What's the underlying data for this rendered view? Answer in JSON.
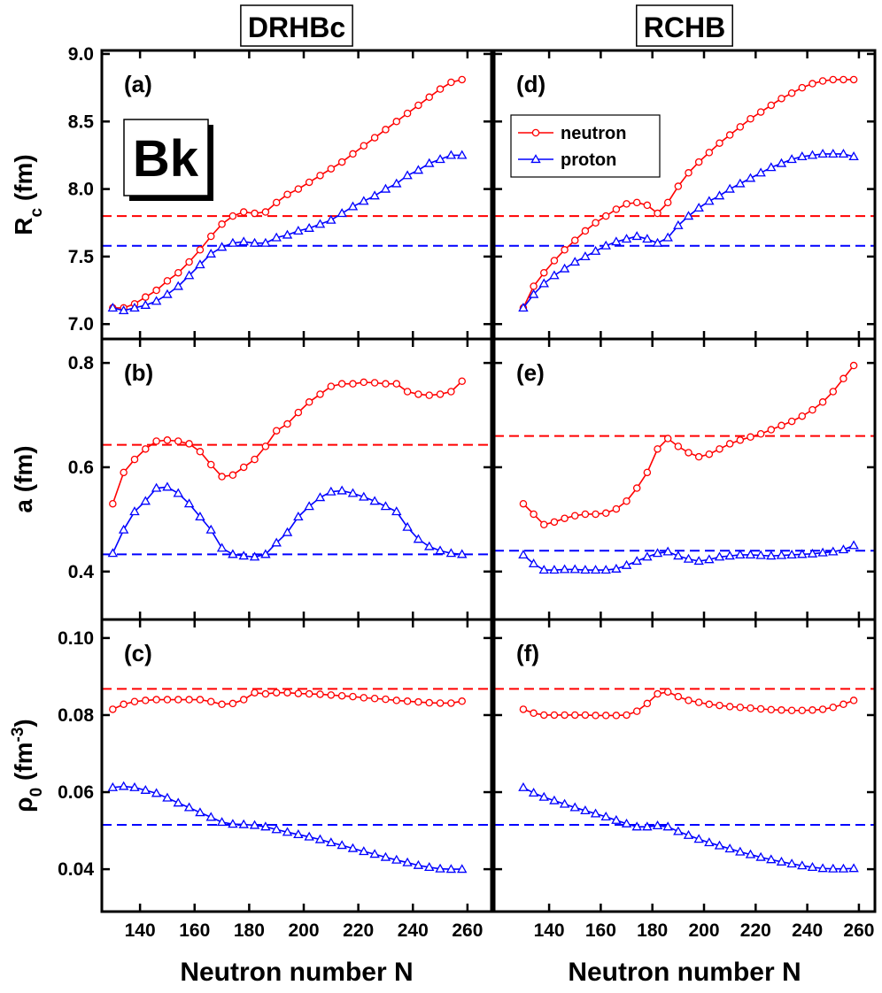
{
  "chart_data": [
    {
      "type": "line",
      "title": "DRHBc",
      "panel_label": "(a)",
      "element_label": "Bk",
      "ylabel": [
        {
          "text": "R"
        },
        {
          "text": "c",
          "shift": "sub"
        },
        {
          "text": " (fm)"
        }
      ],
      "x": [
        130,
        134,
        138,
        142,
        146,
        150,
        154,
        158,
        162,
        166,
        170,
        174,
        178,
        182,
        186,
        190,
        194,
        198,
        202,
        206,
        210,
        214,
        218,
        222,
        226,
        230,
        234,
        238,
        242,
        246,
        250,
        254,
        258
      ],
      "xlim": [
        126,
        268.8
      ],
      "xticks": [
        140,
        160,
        180,
        200,
        220,
        240,
        260
      ],
      "show_xtick_labels": false,
      "ylim": [
        6.89,
        9.026
      ],
      "yticks": [
        {
          "value": 7,
          "label": "7.0"
        },
        7.5,
        {
          "value": 8,
          "label": "8.0"
        },
        8.5,
        {
          "value": 9,
          "label": "9.0"
        }
      ],
      "show_ytick_labels": true,
      "hlines": [
        {
          "value": 7.8,
          "color": "#ff0000"
        },
        {
          "value": 7.58,
          "color": "#0000ff"
        }
      ],
      "series": [
        {
          "name": "neutron",
          "color": "#ff0000",
          "marker": "circle",
          "values": [
            7.12,
            7.12,
            7.15,
            7.2,
            7.25,
            7.32,
            7.38,
            7.46,
            7.55,
            7.65,
            7.74,
            7.8,
            7.83,
            7.82,
            7.83,
            7.9,
            7.96,
            8.0,
            8.05,
            8.1,
            8.15,
            8.2,
            8.26,
            8.32,
            8.38,
            8.44,
            8.5,
            8.56,
            8.62,
            8.68,
            8.74,
            8.79,
            8.81
          ]
        },
        {
          "name": "proton",
          "color": "#0000ff",
          "marker": "triangle",
          "values": [
            7.12,
            7.1,
            7.12,
            7.14,
            7.17,
            7.22,
            7.28,
            7.36,
            7.44,
            7.52,
            7.57,
            7.6,
            7.61,
            7.6,
            7.6,
            7.64,
            7.66,
            7.69,
            7.71,
            7.74,
            7.77,
            7.82,
            7.87,
            7.91,
            7.95,
            8.0,
            8.04,
            8.1,
            8.14,
            8.19,
            8.22,
            8.25,
            8.25
          ]
        }
      ]
    },
    {
      "type": "line",
      "panel_label": "(b)",
      "ylabel": [
        {
          "text": "a (fm)"
        }
      ],
      "x": [
        130,
        134,
        138,
        142,
        146,
        150,
        154,
        158,
        162,
        166,
        170,
        174,
        178,
        182,
        186,
        190,
        194,
        198,
        202,
        206,
        210,
        214,
        218,
        222,
        226,
        230,
        234,
        238,
        242,
        246,
        250,
        254,
        258
      ],
      "xlim": [
        126,
        268.8
      ],
      "xticks": [
        140,
        160,
        180,
        200,
        220,
        240,
        260
      ],
      "show_xtick_labels": false,
      "ylim": [
        0.308,
        0.846
      ],
      "yticks": [
        0.4,
        0.6,
        0.8
      ],
      "show_ytick_labels": true,
      "hlines": [
        {
          "value": 0.643,
          "color": "#ff0000"
        },
        {
          "value": 0.433,
          "color": "#0000ff"
        }
      ],
      "series": [
        {
          "name": "neutron",
          "color": "#ff0000",
          "marker": "circle",
          "values": [
            0.53,
            0.59,
            0.615,
            0.635,
            0.65,
            0.652,
            0.65,
            0.645,
            0.63,
            0.605,
            0.582,
            0.585,
            0.6,
            0.615,
            0.64,
            0.67,
            0.683,
            0.705,
            0.725,
            0.74,
            0.755,
            0.76,
            0.76,
            0.763,
            0.762,
            0.76,
            0.76,
            0.745,
            0.74,
            0.738,
            0.74,
            0.745,
            0.765
          ]
        },
        {
          "name": "proton",
          "color": "#0000ff",
          "marker": "triangle",
          "values": [
            0.435,
            0.48,
            0.515,
            0.535,
            0.56,
            0.562,
            0.55,
            0.53,
            0.505,
            0.48,
            0.445,
            0.433,
            0.43,
            0.428,
            0.433,
            0.455,
            0.475,
            0.505,
            0.525,
            0.542,
            0.553,
            0.555,
            0.55,
            0.543,
            0.535,
            0.525,
            0.515,
            0.485,
            0.462,
            0.448,
            0.44,
            0.435,
            0.433
          ]
        }
      ]
    },
    {
      "type": "line",
      "panel_label": "(c)",
      "xlabel": "Neutron number N",
      "ylabel": [
        {
          "text": "ρ"
        },
        {
          "text": "0",
          "shift": "sub"
        },
        {
          "text": " (fm"
        },
        {
          "text": "-3",
          "shift": "super"
        },
        {
          "text": ")"
        }
      ],
      "x": [
        130,
        134,
        138,
        142,
        146,
        150,
        154,
        158,
        162,
        166,
        170,
        174,
        178,
        182,
        186,
        190,
        194,
        198,
        202,
        206,
        210,
        214,
        218,
        222,
        226,
        230,
        234,
        238,
        242,
        246,
        250,
        254,
        258
      ],
      "xlim": [
        126,
        268.8
      ],
      "xticks": [
        140,
        160,
        180,
        200,
        220,
        240,
        260
      ],
      "show_xtick_labels": true,
      "ylim": [
        0.029,
        0.1048
      ],
      "yticks": [
        0.04,
        0.06,
        0.08,
        {
          "value": 0.1,
          "label": "0.10"
        }
      ],
      "show_ytick_labels": true,
      "hlines": [
        {
          "value": 0.0868,
          "color": "#ff0000"
        },
        {
          "value": 0.0515,
          "color": "#0000ff"
        }
      ],
      "series": [
        {
          "name": "neutron",
          "color": "#ff0000",
          "marker": "circle",
          "values": [
            0.0815,
            0.0828,
            0.0835,
            0.0838,
            0.084,
            0.084,
            0.084,
            0.084,
            0.084,
            0.0835,
            0.0828,
            0.083,
            0.084,
            0.0858,
            0.0855,
            0.0858,
            0.0858,
            0.0856,
            0.0855,
            0.0854,
            0.0852,
            0.085,
            0.0848,
            0.0845,
            0.0843,
            0.0841,
            0.0838,
            0.0836,
            0.0834,
            0.0832,
            0.0831,
            0.0831,
            0.0836
          ]
        },
        {
          "name": "proton",
          "color": "#0000ff",
          "marker": "triangle",
          "values": [
            0.0612,
            0.0615,
            0.0612,
            0.0605,
            0.0597,
            0.0585,
            0.0572,
            0.056,
            0.0547,
            0.0535,
            0.0522,
            0.0517,
            0.0516,
            0.0514,
            0.051,
            0.0503,
            0.0496,
            0.049,
            0.0484,
            0.0477,
            0.0469,
            0.0462,
            0.0454,
            0.0446,
            0.0439,
            0.0431,
            0.0424,
            0.0417,
            0.041,
            0.0405,
            0.0401,
            0.04,
            0.04
          ]
        }
      ]
    },
    {
      "type": "line",
      "title": "RCHB",
      "panel_label": "(d)",
      "legend": "upper left",
      "x": [
        130,
        134,
        138,
        142,
        146,
        150,
        154,
        158,
        162,
        166,
        170,
        174,
        178,
        182,
        186,
        190,
        194,
        198,
        202,
        206,
        210,
        214,
        218,
        222,
        226,
        230,
        234,
        238,
        242,
        246,
        250,
        254,
        258
      ],
      "xlim": [
        118.7,
        266.2
      ],
      "xticks": [
        140,
        160,
        180,
        200,
        220,
        240,
        260
      ],
      "show_xtick_labels": false,
      "ylim": [
        6.89,
        9.026
      ],
      "yticks": [
        7,
        7.5,
        8,
        8.5,
        9
      ],
      "show_ytick_labels": false,
      "hlines": [
        {
          "value": 7.8,
          "color": "#ff0000"
        },
        {
          "value": 7.58,
          "color": "#0000ff"
        }
      ],
      "series": [
        {
          "name": "neutron",
          "color": "#ff0000",
          "marker": "circle",
          "values": [
            7.12,
            7.28,
            7.38,
            7.47,
            7.55,
            7.62,
            7.69,
            7.75,
            7.8,
            7.85,
            7.89,
            7.9,
            7.88,
            7.82,
            7.9,
            8.02,
            8.12,
            8.2,
            8.27,
            8.34,
            8.4,
            8.46,
            8.52,
            8.57,
            8.62,
            8.67,
            8.71,
            8.75,
            8.78,
            8.8,
            8.81,
            8.81,
            8.81
          ]
        },
        {
          "name": "proton",
          "color": "#0000ff",
          "marker": "triangle",
          "values": [
            7.12,
            7.22,
            7.3,
            7.36,
            7.41,
            7.46,
            7.5,
            7.54,
            7.58,
            7.61,
            7.63,
            7.65,
            7.63,
            7.6,
            7.64,
            7.73,
            7.8,
            7.86,
            7.91,
            7.95,
            8.0,
            8.04,
            8.08,
            8.12,
            8.16,
            8.19,
            8.22,
            8.24,
            8.25,
            8.26,
            8.26,
            8.26,
            8.24
          ]
        }
      ]
    },
    {
      "type": "line",
      "panel_label": "(e)",
      "x": [
        130,
        134,
        138,
        142,
        146,
        150,
        154,
        158,
        162,
        166,
        170,
        174,
        178,
        182,
        186,
        190,
        194,
        198,
        202,
        206,
        210,
        214,
        218,
        222,
        226,
        230,
        234,
        238,
        242,
        246,
        250,
        254,
        258
      ],
      "xlim": [
        118.7,
        266.2
      ],
      "xticks": [
        140,
        160,
        180,
        200,
        220,
        240,
        260
      ],
      "show_xtick_labels": false,
      "ylim": [
        0.308,
        0.846
      ],
      "yticks": [
        0.4,
        0.6,
        0.8
      ],
      "show_ytick_labels": false,
      "hlines": [
        {
          "value": 0.66,
          "color": "#ff0000"
        },
        {
          "value": 0.44,
          "color": "#0000ff"
        }
      ],
      "series": [
        {
          "name": "neutron",
          "color": "#ff0000",
          "marker": "circle",
          "values": [
            0.53,
            0.51,
            0.49,
            0.495,
            0.502,
            0.507,
            0.51,
            0.51,
            0.512,
            0.52,
            0.535,
            0.56,
            0.59,
            0.635,
            0.655,
            0.64,
            0.628,
            0.62,
            0.625,
            0.635,
            0.645,
            0.652,
            0.658,
            0.664,
            0.672,
            0.68,
            0.688,
            0.698,
            0.71,
            0.725,
            0.745,
            0.77,
            0.795
          ]
        },
        {
          "name": "proton",
          "color": "#0000ff",
          "marker": "triangle",
          "values": [
            0.432,
            0.415,
            0.403,
            0.403,
            0.404,
            0.404,
            0.403,
            0.403,
            0.403,
            0.405,
            0.412,
            0.42,
            0.428,
            0.435,
            0.438,
            0.43,
            0.424,
            0.42,
            0.423,
            0.428,
            0.43,
            0.432,
            0.432,
            0.431,
            0.43,
            0.431,
            0.432,
            0.433,
            0.434,
            0.436,
            0.438,
            0.442,
            0.45
          ]
        }
      ]
    },
    {
      "type": "line",
      "panel_label": "(f)",
      "xlabel": "Neutron number N",
      "x": [
        130,
        134,
        138,
        142,
        146,
        150,
        154,
        158,
        162,
        166,
        170,
        174,
        178,
        182,
        186,
        190,
        194,
        198,
        202,
        206,
        210,
        214,
        218,
        222,
        226,
        230,
        234,
        238,
        242,
        246,
        250,
        254,
        258
      ],
      "xlim": [
        118.7,
        266.2
      ],
      "xticks": [
        140,
        160,
        180,
        200,
        220,
        240,
        260
      ],
      "show_xtick_labels": true,
      "ylim": [
        0.029,
        0.1048
      ],
      "yticks": [
        0.04,
        0.06,
        0.08,
        0.1
      ],
      "show_ytick_labels": false,
      "hlines": [
        {
          "value": 0.0868,
          "color": "#ff0000"
        },
        {
          "value": 0.0515,
          "color": "#0000ff"
        }
      ],
      "series": [
        {
          "name": "neutron",
          "color": "#ff0000",
          "marker": "circle",
          "values": [
            0.0815,
            0.0805,
            0.08,
            0.08,
            0.08,
            0.08,
            0.08,
            0.0799,
            0.0799,
            0.0799,
            0.08,
            0.081,
            0.083,
            0.0855,
            0.086,
            0.0848,
            0.0838,
            0.0833,
            0.0828,
            0.0825,
            0.0822,
            0.082,
            0.0818,
            0.0816,
            0.0814,
            0.0813,
            0.0812,
            0.0812,
            0.0813,
            0.0815,
            0.082,
            0.0828,
            0.0838
          ]
        },
        {
          "name": "proton",
          "color": "#0000ff",
          "marker": "triangle",
          "values": [
            0.0612,
            0.0598,
            0.0587,
            0.0578,
            0.0569,
            0.056,
            0.0552,
            0.0544,
            0.0536,
            0.0527,
            0.0518,
            0.051,
            0.051,
            0.0513,
            0.051,
            0.0498,
            0.0488,
            0.0478,
            0.0469,
            0.0461,
            0.0453,
            0.0445,
            0.0438,
            0.0431,
            0.0425,
            0.0419,
            0.0414,
            0.0409,
            0.0405,
            0.0402,
            0.0401,
            0.0401,
            0.0402
          ]
        }
      ]
    }
  ]
}
